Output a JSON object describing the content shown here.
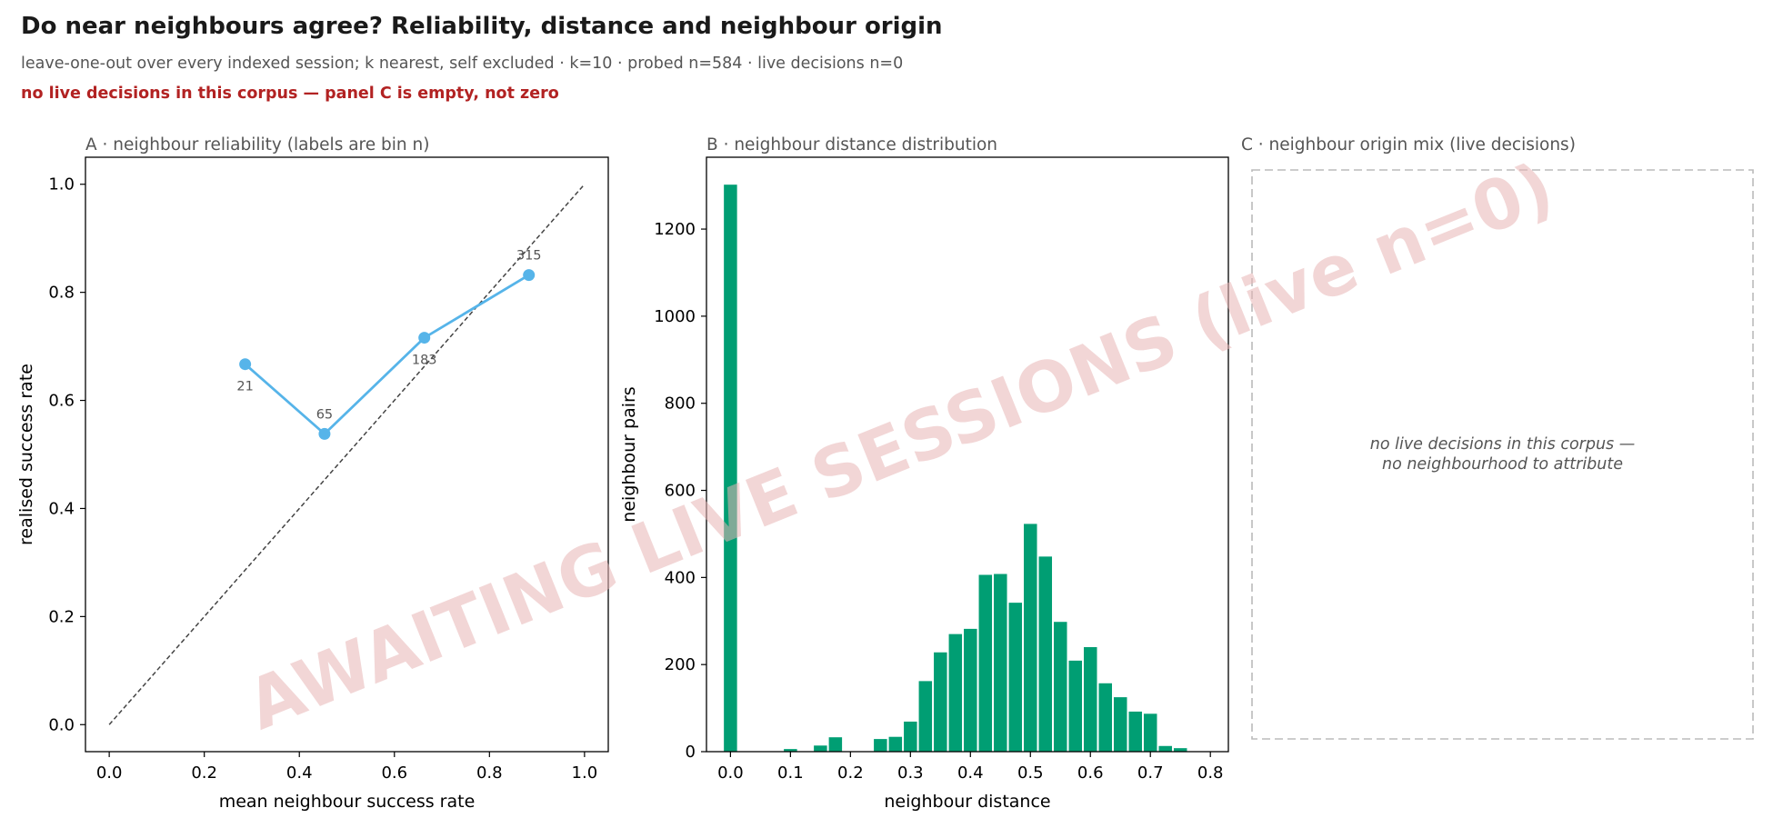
{
  "figure": {
    "title": "Do near neighbours agree? Reliability, distance and neighbour origin",
    "subtitle": "leave-one-out over every indexed session; k nearest, self excluded · k=10 · probed n=584 · live decisions n=0",
    "warning": "no live decisions in this corpus — panel C is empty, not zero",
    "watermark": "AWAITING LIVE SESSIONS (live n=0)",
    "colors": {
      "title": "#1a1a1a",
      "subtitle": "#555555",
      "warning": "#b22222",
      "reliability_line": "#56b4e9",
      "histogram_bar": "#009e73",
      "diagonal": "#444444",
      "watermark": "#e8b4b4",
      "empty_border": "#bbbbbb"
    }
  },
  "chart_data": [
    {
      "type": "line",
      "panel_title": "A · neighbour reliability (labels are bin n)",
      "xlabel": "mean neighbour success rate",
      "ylabel": "realised success rate",
      "xlim": [
        -0.05,
        1.05
      ],
      "ylim": [
        -0.05,
        1.05
      ],
      "xticks": [
        0.0,
        0.2,
        0.4,
        0.6,
        0.8,
        1.0
      ],
      "yticks": [
        0.0,
        0.2,
        0.4,
        0.6,
        0.8,
        1.0
      ],
      "tick_labels": [
        "0.0",
        "0.2",
        "0.4",
        "0.6",
        "0.8",
        "1.0"
      ],
      "reference_line": "y = x (dashed)",
      "series": [
        {
          "points": [
            {
              "x": 0.286,
              "y": 0.667,
              "label": "21"
            },
            {
              "x": 0.453,
              "y": 0.538,
              "label": "65"
            },
            {
              "x": 0.663,
              "y": 0.716,
              "label": "183"
            },
            {
              "x": 0.883,
              "y": 0.832,
              "label": "315"
            }
          ]
        }
      ]
    },
    {
      "type": "bar",
      "panel_title": "B · neighbour distance distribution",
      "xlabel": "neighbour distance",
      "ylabel": "neighbour pairs",
      "xlim": [
        -0.04,
        0.83
      ],
      "ylim": [
        0,
        1365
      ],
      "xticks": [
        0.0,
        0.1,
        0.2,
        0.3,
        0.4,
        0.5,
        0.6,
        0.7,
        0.8
      ],
      "xtick_labels": [
        "0.0",
        "0.1",
        "0.2",
        "0.3",
        "0.4",
        "0.5",
        "0.6",
        "0.7",
        "0.8"
      ],
      "yticks": [
        0,
        200,
        400,
        600,
        800,
        1000,
        1200
      ],
      "ytick_labels": [
        "0",
        "200",
        "400",
        "600",
        "800",
        "1000",
        "1200"
      ],
      "bin_width": 0.025,
      "bins": [
        {
          "x": 0.0,
          "count": 1302
        },
        {
          "x": 0.025,
          "count": 0
        },
        {
          "x": 0.05,
          "count": 0
        },
        {
          "x": 0.075,
          "count": 0
        },
        {
          "x": 0.1,
          "count": 6
        },
        {
          "x": 0.125,
          "count": 0
        },
        {
          "x": 0.15,
          "count": 14
        },
        {
          "x": 0.175,
          "count": 33
        },
        {
          "x": 0.2,
          "count": 0
        },
        {
          "x": 0.225,
          "count": 0
        },
        {
          "x": 0.25,
          "count": 29
        },
        {
          "x": 0.275,
          "count": 34
        },
        {
          "x": 0.3,
          "count": 69
        },
        {
          "x": 0.325,
          "count": 162
        },
        {
          "x": 0.35,
          "count": 228
        },
        {
          "x": 0.375,
          "count": 270
        },
        {
          "x": 0.4,
          "count": 282
        },
        {
          "x": 0.425,
          "count": 406
        },
        {
          "x": 0.45,
          "count": 408
        },
        {
          "x": 0.475,
          "count": 342
        },
        {
          "x": 0.5,
          "count": 523
        },
        {
          "x": 0.525,
          "count": 448
        },
        {
          "x": 0.55,
          "count": 298
        },
        {
          "x": 0.575,
          "count": 209
        },
        {
          "x": 0.6,
          "count": 240
        },
        {
          "x": 0.625,
          "count": 157
        },
        {
          "x": 0.65,
          "count": 125
        },
        {
          "x": 0.675,
          "count": 92
        },
        {
          "x": 0.7,
          "count": 87
        },
        {
          "x": 0.725,
          "count": 13
        },
        {
          "x": 0.75,
          "count": 8
        }
      ]
    },
    {
      "type": "table",
      "panel_title": "C · neighbour origin mix (live decisions)",
      "empty": true,
      "empty_message_line1": "no live decisions in this corpus —",
      "empty_message_line2": "no neighbourhood to attribute"
    }
  ]
}
